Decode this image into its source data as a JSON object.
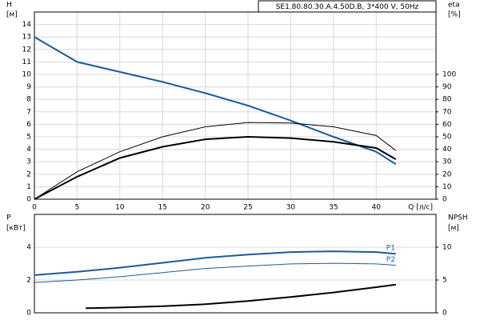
{
  "chart_data": [
    {
      "type": "line",
      "title": "SE1.80.80.30.A.4.50D.B, 3*400 V, 50Hz",
      "ylabel": "H",
      "yunit": "[м]",
      "y2label": "eta",
      "y2unit": "[%]",
      "xlabel": "Q [л/с]",
      "x": [
        0,
        5,
        10,
        15,
        20,
        25,
        30,
        35,
        40,
        42.3
      ],
      "xlim": [
        0,
        47
      ],
      "xticks": [
        0,
        5,
        10,
        15,
        20,
        25,
        30,
        35,
        40
      ],
      "ylim": [
        0,
        15
      ],
      "yticks": [
        0,
        1,
        2,
        3,
        4,
        5,
        6,
        7,
        8,
        9,
        10,
        11,
        12,
        13,
        14
      ],
      "y2lim": [
        0,
        150
      ],
      "y2ticks": [
        0,
        10,
        20,
        30,
        40,
        50,
        60,
        70,
        80,
        90,
        100
      ],
      "grid": true,
      "series": [
        {
          "color": "#1f5a96",
          "width": 2,
          "values": [
            13,
            11,
            10.2,
            9.4,
            8.5,
            7.5,
            6.3,
            5,
            3.8,
            2.8
          ]
        },
        {
          "color": "#000000",
          "width": 1,
          "axis": "y2",
          "values": [
            0,
            22,
            38,
            50,
            58,
            61.5,
            61,
            58,
            51,
            39
          ]
        },
        {
          "color": "#000000",
          "width": 2,
          "axis": "y2",
          "values": [
            0,
            18,
            33,
            42,
            48,
            50,
            49,
            46,
            41,
            32
          ]
        }
      ]
    },
    {
      "type": "line",
      "ylabel": "P",
      "yunit": "[кВт]",
      "y2label": "NPSH",
      "y2unit": "[м]",
      "xlim": [
        0,
        47
      ],
      "ylim": [
        0,
        6
      ],
      "yticks": [
        0,
        2,
        4
      ],
      "y2lim": [
        0,
        15
      ],
      "y2ticks": [
        0,
        5,
        10
      ],
      "grid": true,
      "series": [
        {
          "name": "P1",
          "color": "#1f5a96",
          "width": 2,
          "x": [
            0,
            5,
            10,
            15,
            20,
            25,
            30,
            35,
            40,
            42.3
          ],
          "values": [
            2.3,
            2.5,
            2.75,
            3.05,
            3.35,
            3.55,
            3.7,
            3.75,
            3.7,
            3.6
          ]
        },
        {
          "name": "P2",
          "color": "#1f5a96",
          "width": 1,
          "x": [
            0,
            5,
            10,
            15,
            20,
            25,
            30,
            35,
            40,
            42.3
          ],
          "values": [
            1.85,
            2.0,
            2.2,
            2.45,
            2.7,
            2.85,
            2.98,
            3.02,
            2.98,
            2.9
          ]
        },
        {
          "color": "#000000",
          "width": 2,
          "axis": "y2",
          "x": [
            6,
            10,
            15,
            20,
            25,
            30,
            35,
            40,
            42.3
          ],
          "values": [
            0.7,
            0.8,
            1.0,
            1.3,
            1.8,
            2.4,
            3.1,
            3.9,
            4.3
          ]
        }
      ]
    }
  ]
}
